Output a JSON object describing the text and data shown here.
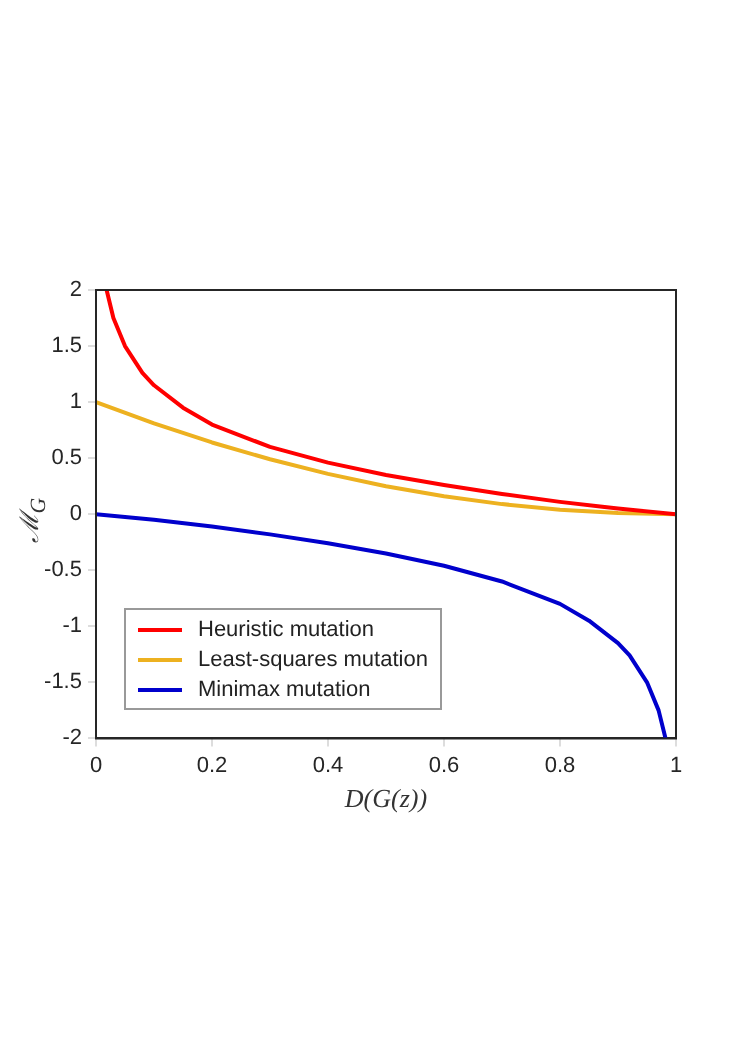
{
  "chart_data": {
    "type": "line",
    "xlabel": "D(G(z))",
    "ylabel": "ℳ$_{G}$",
    "xlim": [
      0,
      1
    ],
    "ylim": [
      -2,
      2
    ],
    "xticks": [
      0,
      0.2,
      0.4,
      0.6,
      0.8,
      1
    ],
    "yticks": [
      -2,
      -1.5,
      -1,
      -0.5,
      0,
      0.5,
      1,
      1.5,
      2
    ],
    "grid": false,
    "legend": "bottom left",
    "marker": "none",
    "line_style": "solid",
    "series": [
      {
        "name": "Heuristic mutation",
        "color": "#ff0000",
        "x": [
          0.0183,
          0.03,
          0.05,
          0.08,
          0.1,
          0.15,
          0.2,
          0.3,
          0.4,
          0.5,
          0.6,
          0.7,
          0.8,
          0.9,
          1
        ],
        "values": [
          2,
          1.75,
          1.5,
          1.26,
          1.15,
          0.95,
          0.8,
          0.6,
          0.46,
          0.35,
          0.26,
          0.18,
          0.11,
          0.05,
          0
        ]
      },
      {
        "name": "Least-squares mutation",
        "color": "#edb120",
        "x": [
          0,
          0.1,
          0.2,
          0.3,
          0.4,
          0.5,
          0.6,
          0.7,
          0.8,
          0.9,
          1
        ],
        "values": [
          1,
          0.81,
          0.64,
          0.49,
          0.36,
          0.25,
          0.16,
          0.09,
          0.04,
          0.01,
          0
        ]
      },
      {
        "name": "Minimax mutation",
        "color": "#0000cc",
        "x": [
          0,
          0.1,
          0.2,
          0.3,
          0.4,
          0.5,
          0.6,
          0.7,
          0.8,
          0.85,
          0.9,
          0.92,
          0.95,
          0.97,
          0.982
        ],
        "values": [
          0,
          -0.05,
          -0.11,
          -0.18,
          -0.26,
          -0.35,
          -0.46,
          -0.6,
          -0.8,
          -0.95,
          -1.15,
          -1.26,
          -1.5,
          -1.75,
          -2
        ]
      }
    ]
  }
}
